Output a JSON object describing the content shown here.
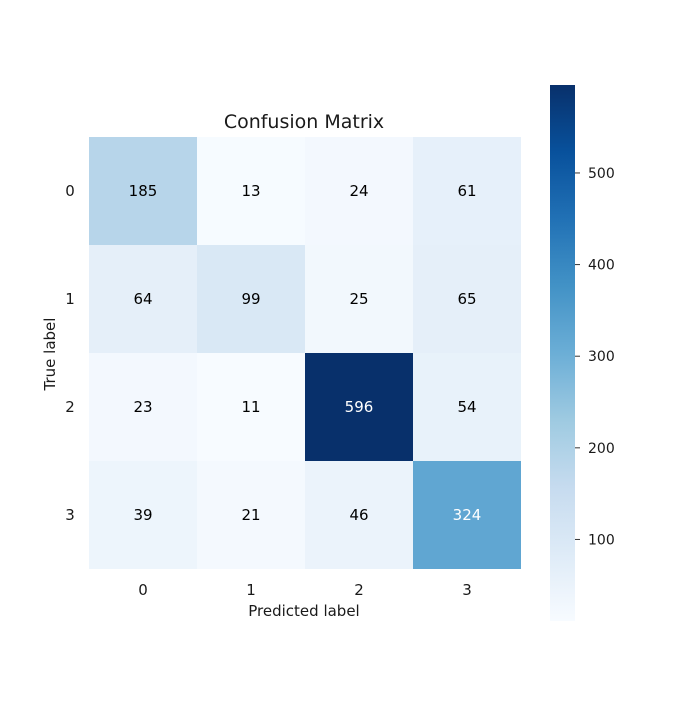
{
  "chart_data": {
    "type": "heatmap",
    "title": "Confusion Matrix",
    "xlabel": "Predicted label",
    "ylabel": "True label",
    "x_categories": [
      "0",
      "1",
      "2",
      "3"
    ],
    "y_categories": [
      "0",
      "1",
      "2",
      "3"
    ],
    "values": [
      [
        185,
        13,
        24,
        61
      ],
      [
        64,
        99,
        25,
        65
      ],
      [
        23,
        11,
        596,
        54
      ],
      [
        39,
        21,
        46,
        324
      ]
    ],
    "colormap": "Blues",
    "vmin": 11,
    "vmax": 596,
    "colorbar_ticks": [
      100,
      200,
      300,
      400,
      500
    ],
    "grid": false
  }
}
